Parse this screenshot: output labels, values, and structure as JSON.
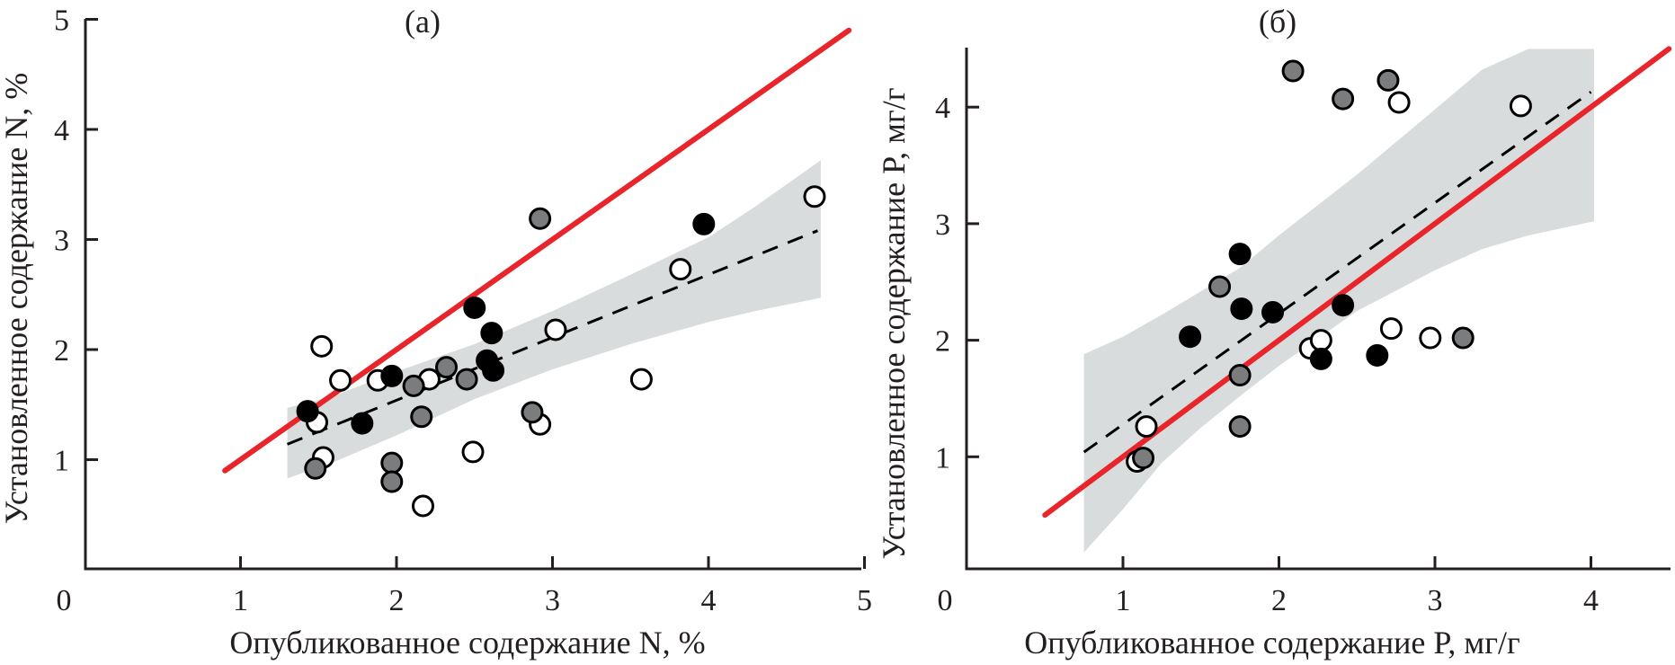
{
  "colors": {
    "one_to_one": "#e8252b",
    "fit_line": "#000000",
    "ci_band": "#d9dcdc",
    "axis": "#231f20",
    "series_open": "#ffffff",
    "series_black": "#000000",
    "series_gray": "#7a7c7e"
  },
  "chart_data": [
    {
      "type": "scatter",
      "panel_label": "(a)",
      "title": "",
      "xlabel": "Опубликованное содержание N, %",
      "ylabel": "Установленное содержание N, %",
      "xlim": [
        0,
        5
      ],
      "ylim": [
        0.82,
        5
      ],
      "xticks": [
        0,
        1,
        2,
        3,
        4,
        5
      ],
      "xtick_labels": [
        "0",
        "1",
        "2",
        "3",
        "4",
        "5"
      ],
      "yticks": [
        1,
        2,
        3,
        4,
        5
      ],
      "ytick_labels": [
        "1",
        "2",
        "3",
        "4",
        "5"
      ],
      "grid": false,
      "legend": "none",
      "series": [
        {
          "name": "open",
          "style": "open-circle",
          "points": [
            [
              1.52,
              2.03
            ],
            [
              1.64,
              1.72
            ],
            [
              1.88,
              1.72
            ],
            [
              1.49,
              1.34
            ],
            [
              1.53,
              1.02
            ],
            [
              2.17,
              0.58
            ],
            [
              2.49,
              1.07
            ],
            [
              2.21,
              1.73
            ],
            [
              2.92,
              1.32
            ],
            [
              3.02,
              2.18
            ],
            [
              3.57,
              1.73
            ],
            [
              3.82,
              2.73
            ],
            [
              4.68,
              3.39
            ]
          ]
        },
        {
          "name": "black",
          "style": "filled-black-circle",
          "points": [
            [
              1.43,
              1.44
            ],
            [
              1.78,
              1.33
            ],
            [
              1.97,
              1.76
            ],
            [
              2.5,
              2.38
            ],
            [
              2.61,
              2.15
            ],
            [
              2.58,
              1.9
            ],
            [
              2.62,
              1.81
            ],
            [
              3.97,
              3.14
            ]
          ]
        },
        {
          "name": "gray",
          "style": "filled-gray-circle",
          "points": [
            [
              1.48,
              0.92
            ],
            [
              1.97,
              0.97
            ],
            [
              1.97,
              0.8
            ],
            [
              2.11,
              1.67
            ],
            [
              2.16,
              1.39
            ],
            [
              2.32,
              1.84
            ],
            [
              2.45,
              1.73
            ],
            [
              2.87,
              1.43
            ],
            [
              2.92,
              3.19
            ]
          ]
        }
      ],
      "one_to_one_line": {
        "x": [
          0.9,
          4.9
        ],
        "y": [
          0.9,
          4.9
        ]
      },
      "regression_line": {
        "x": [
          1.3,
          4.7
        ],
        "y": [
          1.14,
          3.08
        ]
      },
      "confidence_band": {
        "x": [
          1.3,
          1.6,
          2.0,
          2.5,
          3.0,
          3.5,
          4.0,
          4.3,
          4.72
        ],
        "upper": [
          1.47,
          1.58,
          1.8,
          2.05,
          2.35,
          2.68,
          3.02,
          3.3,
          3.72
        ],
        "lower": [
          0.83,
          0.98,
          1.22,
          1.55,
          1.82,
          2.05,
          2.25,
          2.35,
          2.47
        ]
      }
    },
    {
      "type": "scatter",
      "panel_label": "(б)",
      "title": "",
      "xlabel": "Опубликованное содержание P, мг/г",
      "ylabel": "Установленное содержание P, мг/г",
      "xlim": [
        0,
        4.5
      ],
      "ylim": [
        0,
        4.5
      ],
      "xticks": [
        0,
        1,
        2,
        3,
        4
      ],
      "xtick_labels": [
        "0",
        "1",
        "2",
        "3",
        "4"
      ],
      "yticks": [
        1,
        2,
        3,
        4
      ],
      "ytick_labels": [
        "1",
        "2",
        "3",
        "4"
      ],
      "grid": false,
      "legend": "none",
      "series": [
        {
          "name": "open",
          "style": "open-circle",
          "points": [
            [
              1.09,
              0.96
            ],
            [
              1.15,
              1.26
            ],
            [
              2.2,
              1.93
            ],
            [
              2.27,
              2.0
            ],
            [
              2.72,
              2.1
            ],
            [
              2.97,
              2.02
            ],
            [
              2.77,
              4.04
            ],
            [
              3.55,
              4.01
            ]
          ]
        },
        {
          "name": "black",
          "style": "filled-black-circle",
          "points": [
            [
              1.43,
              2.03
            ],
            [
              1.75,
              2.74
            ],
            [
              1.76,
              2.27
            ],
            [
              1.96,
              2.24
            ],
            [
              2.27,
              1.84
            ],
            [
              2.41,
              2.3
            ],
            [
              2.63,
              1.87
            ]
          ]
        },
        {
          "name": "gray",
          "style": "filled-gray-circle",
          "points": [
            [
              1.13,
              0.99
            ],
            [
              1.62,
              2.46
            ],
            [
              1.75,
              1.7
            ],
            [
              1.75,
              1.26
            ],
            [
              2.09,
              4.31
            ],
            [
              2.41,
              4.07
            ],
            [
              2.7,
              4.23
            ],
            [
              3.18,
              2.02
            ]
          ]
        }
      ],
      "one_to_one_line": {
        "x": [
          0.5,
          4.5
        ],
        "y": [
          0.5,
          4.5
        ]
      },
      "regression_line": {
        "x": [
          0.75,
          4.0
        ],
        "y": [
          1.04,
          4.13
        ]
      },
      "confidence_band": {
        "x": [
          0.75,
          1.0,
          1.25,
          1.5,
          1.75,
          2.0,
          2.5,
          3.0,
          3.3,
          3.6,
          4.02
        ],
        "upper": [
          1.88,
          2.03,
          2.22,
          2.42,
          2.62,
          2.9,
          3.42,
          3.98,
          4.32,
          4.5,
          4.5
        ],
        "lower": [
          0.18,
          0.55,
          0.95,
          1.25,
          1.52,
          1.78,
          2.25,
          2.6,
          2.78,
          2.9,
          3.02
        ]
      }
    }
  ]
}
